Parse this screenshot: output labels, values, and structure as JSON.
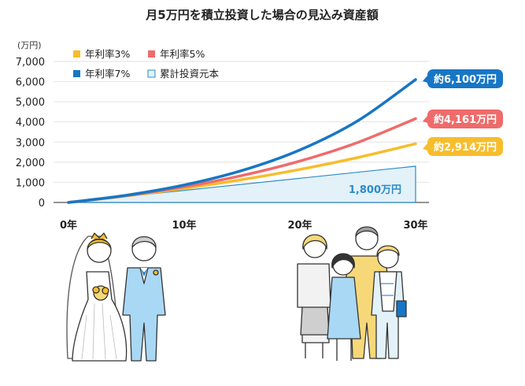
{
  "chart_data": {
    "type": "line",
    "title": "月5万円を積立投資した場合の見込み資産額",
    "y_unit": "(万円)",
    "x_tick_labels": [
      "0年",
      "10年",
      "20年",
      "30年"
    ],
    "x_ticks": [
      0,
      10,
      20,
      30
    ],
    "xlim": [
      0,
      30
    ],
    "y_tick_labels": [
      "0",
      "1,000",
      "2,000",
      "3,000",
      "4,000",
      "5,000",
      "6,000",
      "7,000"
    ],
    "ylim": [
      0,
      7000
    ],
    "legend": [
      "年利率3%",
      "年利率5%",
      "年利率7%",
      "累計投資元本"
    ],
    "colors": {
      "rate3": "#f7bd2c",
      "rate5": "#ef6b6b",
      "rate7": "#1776c5",
      "principal_fill": "#e3f1f9",
      "principal_stroke": "#2a8cc8"
    },
    "series": [
      {
        "name": "年利率3%",
        "x": [
          0,
          5,
          10,
          15,
          20,
          25,
          30
        ],
        "y": [
          0,
          324,
          699,
          1134,
          1641,
          2229,
          2914
        ],
        "end_label": "約2,914万円"
      },
      {
        "name": "年利率5%",
        "x": [
          0,
          5,
          10,
          15,
          20,
          25,
          30
        ],
        "y": [
          0,
          340,
          776,
          1336,
          2055,
          2978,
          4161
        ],
        "end_label": "約4,161万円"
      },
      {
        "name": "年利率7%",
        "x": [
          0,
          5,
          10,
          15,
          20,
          25,
          30
        ],
        "y": [
          0,
          358,
          865,
          1585,
          2605,
          4052,
          6100
        ],
        "end_label": "約6,100万円"
      }
    ],
    "principal": {
      "name": "累計投資元本",
      "x": [
        0,
        30
      ],
      "y": [
        0,
        1800
      ],
      "label": "1,800万円"
    }
  },
  "illustrations": [
    "wedding-couple-illustration",
    "family-illustration"
  ]
}
